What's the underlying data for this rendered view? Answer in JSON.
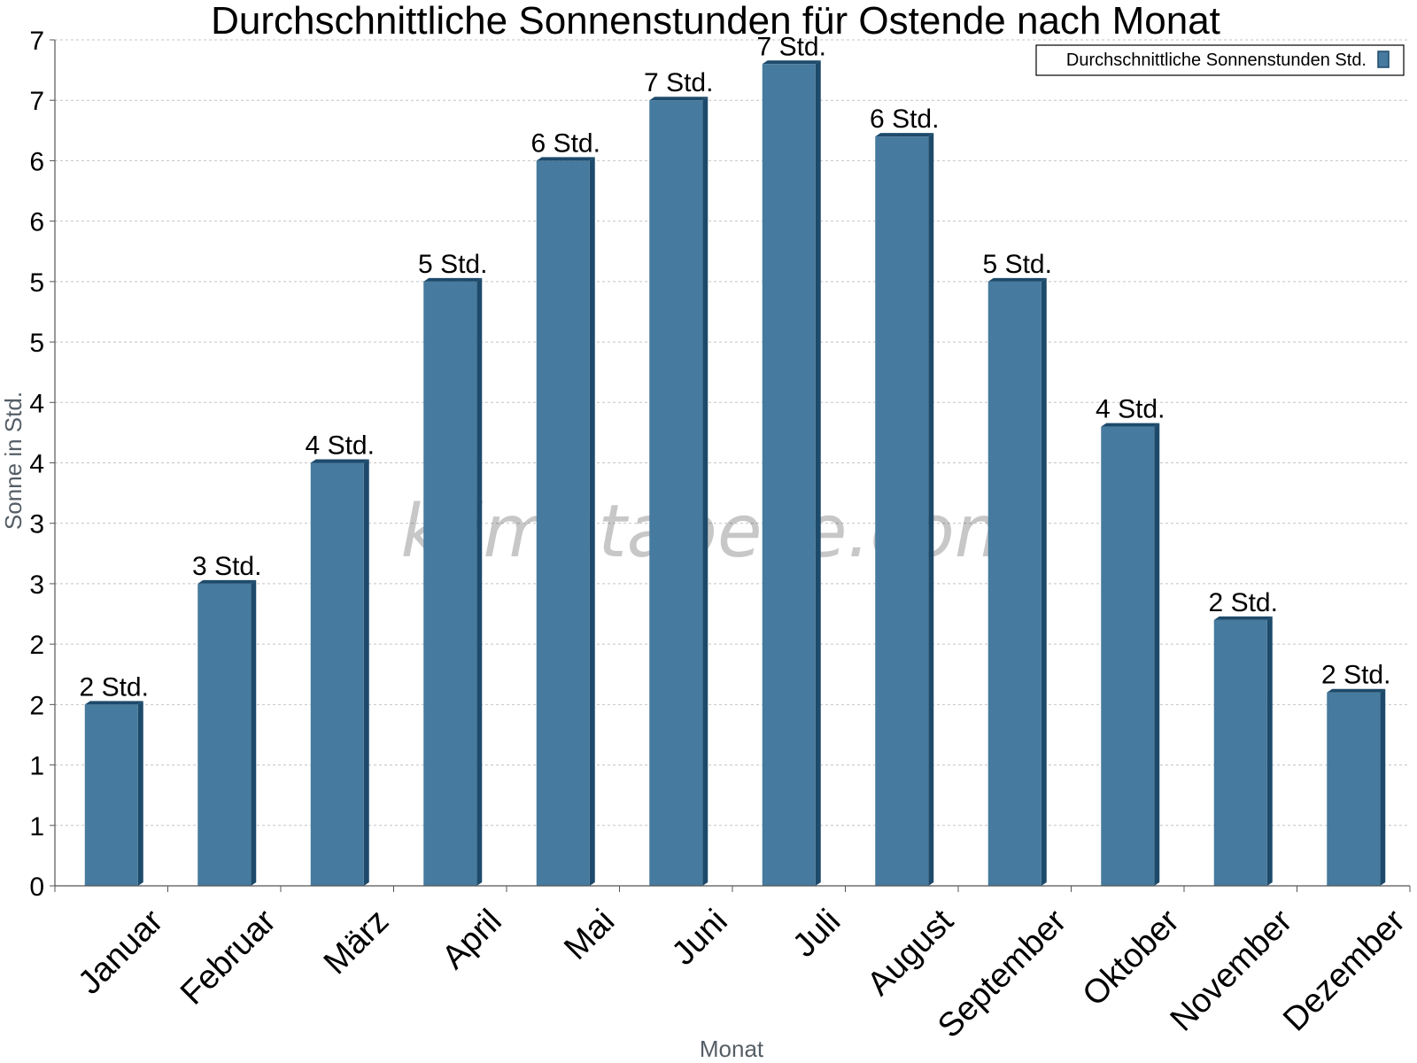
{
  "chart_data": {
    "type": "bar",
    "title": "Durchschnittliche Sonnenstunden für Ostende nach Monat",
    "xlabel": "Monat",
    "ylabel": "Sonne in Std.",
    "watermark": "klimatabelle.com",
    "ylim": [
      0,
      7
    ],
    "yticks": [
      0,
      0.5,
      1,
      1.5,
      2,
      2.5,
      3,
      3.5,
      4,
      4.5,
      5,
      5.5,
      6,
      6.5,
      7
    ],
    "ytick_labels": [
      "0",
      "1",
      "1",
      "2",
      "2",
      "3",
      "3",
      "4",
      "4",
      "5",
      "5",
      "6",
      "6",
      "7",
      "7"
    ],
    "grid": true,
    "legend_position": "top-right",
    "categories": [
      "Januar",
      "Februar",
      "März",
      "April",
      "Mai",
      "Juni",
      "Juli",
      "August",
      "September",
      "Oktober",
      "November",
      "Dezember"
    ],
    "series": [
      {
        "name": "Durchschnittliche Sonnenstunden Std.",
        "color": "#467a9e",
        "values": [
          1.5,
          2.5,
          3.5,
          5.0,
          6.0,
          6.5,
          6.8,
          6.2,
          5.0,
          3.8,
          2.2,
          1.6
        ],
        "labels": [
          "2 Std.",
          "3 Std.",
          "4 Std.",
          "5 Std.",
          "6 Std.",
          "7 Std.",
          "7 Std.",
          "6 Std.",
          "5 Std.",
          "4 Std.",
          "2 Std.",
          "2 Std."
        ]
      }
    ]
  }
}
